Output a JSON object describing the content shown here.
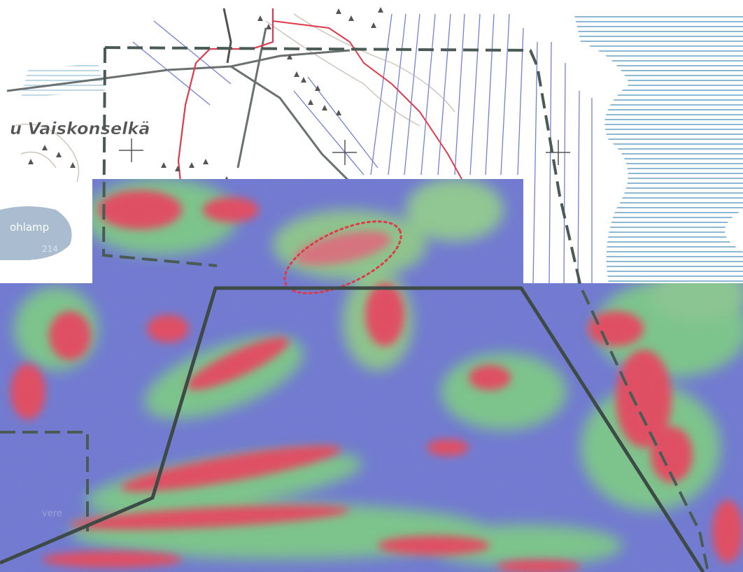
{
  "map": {
    "labels": {
      "place": "u Vaiskonselkä",
      "lake": "ohlamp",
      "lake_number": "214",
      "lower_left": "vere"
    },
    "colors": {
      "survey_high": "#e24a5e",
      "survey_mid": "#7ac48a",
      "survey_low": "#6a74cf",
      "boundary_dashed": "#4a5a55",
      "boundary_solid": "#3d4a45",
      "road": "#e03a4a",
      "water_hatch": "#7fb0cf",
      "drain_lines": "#5a6ad0",
      "anomaly_ellipse": "#e03a4a"
    },
    "icons": [
      "grid-cross-icon",
      "bog-symbol-icon"
    ]
  }
}
